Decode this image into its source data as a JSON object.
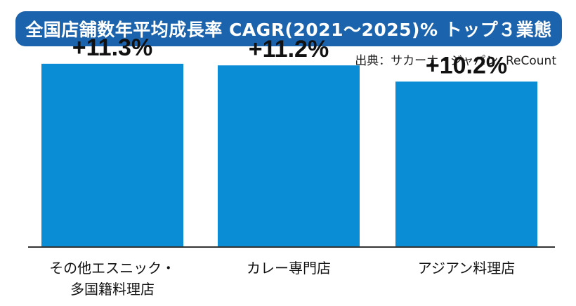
{
  "header": {
    "title": "全国店舗数年平均成長率 CAGR(2021〜2025)% トップ３業態",
    "source": "出典：サカーナ・ジャパン, ReCount"
  },
  "colors": {
    "banner": "#1b63ad",
    "bar": "#0b8dd6",
    "axis": "#333333"
  },
  "chart_data": {
    "type": "bar",
    "title": "全国店舗数年平均成長率 CAGR(2021〜2025)% トップ３業態",
    "categories": [
      [
        "その他エスニック・",
        "多国籍料理店"
      ],
      [
        "カレー専門店"
      ],
      [
        "アジアン料理店"
      ]
    ],
    "values": [
      11.3,
      11.2,
      10.2
    ],
    "value_labels": [
      "+11.3%",
      "+11.2%",
      "+10.2%"
    ],
    "ylim": [
      0,
      13.5
    ],
    "grid": false,
    "legend": "none"
  }
}
